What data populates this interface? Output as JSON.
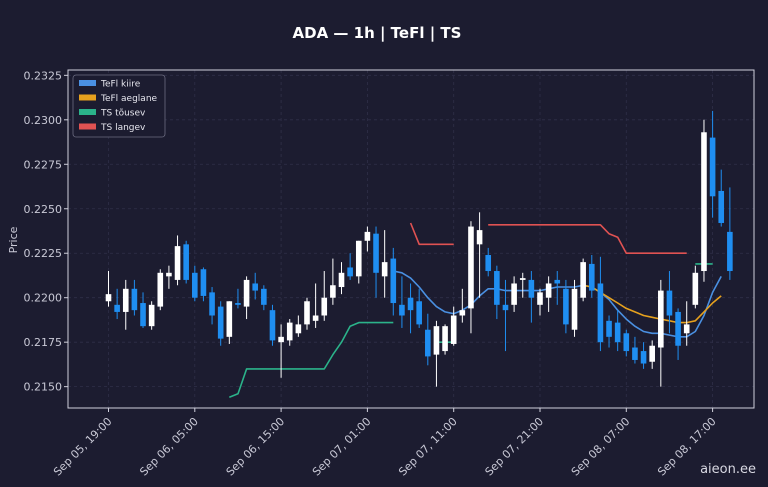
{
  "chart_data": {
    "type": "candlestick",
    "title": "ADA — 1h  |  TeFl  |  TS",
    "ylabel": "Price",
    "watermark": "aieon.ee",
    "ylim": [
      0.2138,
      0.2328
    ],
    "y_ticks": [
      0.215,
      0.2175,
      0.22,
      0.2225,
      0.225,
      0.2275,
      0.23,
      0.2325
    ],
    "y_tick_labels": [
      "0.2150",
      "0.2175",
      "0.2200",
      "0.2225",
      "0.2250",
      "0.2275",
      "0.2300",
      "0.2325"
    ],
    "x_tick_labels": [
      "Sep 05, 19:00",
      "Sep 06, 05:00",
      "Sep 06, 15:00",
      "Sep 07, 01:00",
      "Sep 07, 11:00",
      "Sep 07, 21:00",
      "Sep 08, 07:00",
      "Sep 08, 17:00"
    ],
    "x_tick_index": [
      0,
      10,
      20,
      30,
      40,
      50,
      60,
      70
    ],
    "grid": true,
    "legend_position": "top-left",
    "legend": [
      {
        "label": "TeFl kiire",
        "color": "#4a90e2"
      },
      {
        "label": "TeFl aeglane",
        "color": "#e6a11e"
      },
      {
        "label": "TS tõusev",
        "color": "#2bb38a"
      },
      {
        "label": "TS langev",
        "color": "#e05252"
      }
    ],
    "colors": {
      "up": "#ffffff",
      "down": "#1f8ef1",
      "background": "#1c1c30"
    },
    "candles": [
      [
        0.2198,
        0.2215,
        0.2195,
        0.2202
      ],
      [
        0.2196,
        0.2205,
        0.2188,
        0.2192
      ],
      [
        0.2192,
        0.221,
        0.2182,
        0.2205
      ],
      [
        0.2205,
        0.221,
        0.219,
        0.2193
      ],
      [
        0.2197,
        0.2203,
        0.2183,
        0.2184
      ],
      [
        0.2184,
        0.2198,
        0.2182,
        0.2196
      ],
      [
        0.2195,
        0.2216,
        0.2193,
        0.2214
      ],
      [
        0.2212,
        0.2218,
        0.2205,
        0.2214
      ],
      [
        0.221,
        0.2235,
        0.2207,
        0.2229
      ],
      [
        0.223,
        0.2232,
        0.2208,
        0.221
      ],
      [
        0.2214,
        0.2218,
        0.2198,
        0.22
      ],
      [
        0.2216,
        0.2217,
        0.2198,
        0.2201
      ],
      [
        0.2203,
        0.2206,
        0.2185,
        0.219
      ],
      [
        0.2195,
        0.2198,
        0.2173,
        0.2177
      ],
      [
        0.2178,
        0.2198,
        0.2174,
        0.2198
      ],
      [
        0.2197,
        0.2205,
        0.2194,
        0.2196
      ],
      [
        0.2195,
        0.2212,
        0.2188,
        0.221
      ],
      [
        0.2208,
        0.2214,
        0.2199,
        0.2204
      ],
      [
        0.2205,
        0.2207,
        0.2193,
        0.2196
      ],
      [
        0.2193,
        0.2196,
        0.2173,
        0.2176
      ],
      [
        0.2175,
        0.2185,
        0.2155,
        0.2178
      ],
      [
        0.2176,
        0.2188,
        0.2173,
        0.2186
      ],
      [
        0.218,
        0.219,
        0.2178,
        0.2185
      ],
      [
        0.2185,
        0.22,
        0.2182,
        0.2198
      ],
      [
        0.2187,
        0.2208,
        0.2183,
        0.219
      ],
      [
        0.219,
        0.2215,
        0.2187,
        0.22
      ],
      [
        0.22,
        0.2222,
        0.2196,
        0.2207
      ],
      [
        0.2206,
        0.222,
        0.2202,
        0.2214
      ],
      [
        0.2217,
        0.2225,
        0.221,
        0.2212
      ],
      [
        0.2212,
        0.2232,
        0.2208,
        0.2232
      ],
      [
        0.2232,
        0.224,
        0.2226,
        0.2237
      ],
      [
        0.2236,
        0.224,
        0.22,
        0.2214
      ],
      [
        0.2212,
        0.2238,
        0.22,
        0.222
      ],
      [
        0.2222,
        0.2228,
        0.219,
        0.2197
      ],
      [
        0.2196,
        0.2212,
        0.2183,
        0.219
      ],
      [
        0.22,
        0.2208,
        0.218,
        0.2193
      ],
      [
        0.2198,
        0.2205,
        0.2183,
        0.2185
      ],
      [
        0.2182,
        0.2191,
        0.2162,
        0.2167
      ],
      [
        0.2168,
        0.2187,
        0.215,
        0.2184
      ],
      [
        0.217,
        0.2185,
        0.2168,
        0.2184
      ],
      [
        0.2174,
        0.2195,
        0.2173,
        0.219
      ],
      [
        0.219,
        0.2205,
        0.2186,
        0.2193
      ],
      [
        0.2194,
        0.2243,
        0.218,
        0.224
      ],
      [
        0.223,
        0.2248,
        0.22,
        0.2238
      ],
      [
        0.2224,
        0.2228,
        0.2212,
        0.2215
      ],
      [
        0.2215,
        0.2218,
        0.2188,
        0.2196
      ],
      [
        0.2196,
        0.221,
        0.217,
        0.2193
      ],
      [
        0.2196,
        0.2212,
        0.2192,
        0.2208
      ],
      [
        0.221,
        0.2214,
        0.22,
        0.2211
      ],
      [
        0.221,
        0.2215,
        0.2186,
        0.22
      ],
      [
        0.2196,
        0.2205,
        0.219,
        0.2203
      ],
      [
        0.22,
        0.2212,
        0.2192,
        0.2208
      ],
      [
        0.221,
        0.2215,
        0.2196,
        0.2208
      ],
      [
        0.2205,
        0.221,
        0.218,
        0.2185
      ],
      [
        0.2182,
        0.221,
        0.2178,
        0.2205
      ],
      [
        0.22,
        0.2222,
        0.2198,
        0.222
      ],
      [
        0.2219,
        0.2224,
        0.22,
        0.2204
      ],
      [
        0.2208,
        0.2223,
        0.217,
        0.2175
      ],
      [
        0.2187,
        0.219,
        0.2172,
        0.2178
      ],
      [
        0.2186,
        0.2193,
        0.217,
        0.2175
      ],
      [
        0.218,
        0.2182,
        0.2167,
        0.217
      ],
      [
        0.2172,
        0.2178,
        0.2163,
        0.2165
      ],
      [
        0.217,
        0.2175,
        0.216,
        0.2163
      ],
      [
        0.2164,
        0.2176,
        0.216,
        0.2173
      ],
      [
        0.2172,
        0.221,
        0.215,
        0.2204
      ],
      [
        0.2204,
        0.2215,
        0.218,
        0.219
      ],
      [
        0.2192,
        0.2194,
        0.2165,
        0.2173
      ],
      [
        0.218,
        0.2198,
        0.2173,
        0.2185
      ],
      [
        0.2196,
        0.2218,
        0.2194,
        0.2214
      ],
      [
        0.2215,
        0.23,
        0.2209,
        0.2293
      ],
      [
        0.229,
        0.2305,
        0.2245,
        0.2257
      ],
      [
        0.226,
        0.2272,
        0.224,
        0.2242
      ],
      [
        0.2237,
        0.2262,
        0.221,
        0.2215
      ]
    ],
    "tefl_kiire": [
      [
        33,
        0.2215
      ],
      [
        34,
        0.2214
      ],
      [
        35,
        0.2211
      ],
      [
        36,
        0.2206
      ],
      [
        37,
        0.22
      ],
      [
        38,
        0.2195
      ],
      [
        39,
        0.2192
      ],
      [
        40,
        0.2191
      ],
      [
        41,
        0.2193
      ],
      [
        42,
        0.2196
      ],
      [
        43,
        0.2201
      ],
      [
        44,
        0.2205
      ],
      [
        45,
        0.2205
      ],
      [
        46,
        0.2204
      ],
      [
        47,
        0.2204
      ],
      [
        48,
        0.2204
      ],
      [
        49,
        0.2204
      ],
      [
        50,
        0.2204
      ],
      [
        51,
        0.2205
      ],
      [
        52,
        0.2206
      ],
      [
        53,
        0.2206
      ],
      [
        54,
        0.2206
      ],
      [
        55,
        0.2207
      ],
      [
        56,
        0.2206
      ],
      [
        57,
        0.2203
      ],
      [
        58,
        0.2199
      ],
      [
        59,
        0.2193
      ],
      [
        60,
        0.2188
      ],
      [
        61,
        0.2184
      ],
      [
        62,
        0.2181
      ],
      [
        63,
        0.218
      ],
      [
        64,
        0.218
      ],
      [
        65,
        0.2179
      ],
      [
        66,
        0.2178
      ],
      [
        67,
        0.2178
      ],
      [
        68,
        0.2181
      ],
      [
        69,
        0.219
      ],
      [
        70,
        0.2203
      ],
      [
        71,
        0.2212
      ]
    ],
    "tefl_aeglane": [
      [
        55,
        0.2207
      ],
      [
        56,
        0.2206
      ],
      [
        57,
        0.2203
      ],
      [
        58,
        0.22
      ],
      [
        59,
        0.2197
      ],
      [
        60,
        0.2194
      ],
      [
        61,
        0.2192
      ],
      [
        62,
        0.219
      ],
      [
        63,
        0.2189
      ],
      [
        64,
        0.2188
      ],
      [
        65,
        0.2187
      ],
      [
        66,
        0.2186
      ],
      [
        67,
        0.2186
      ],
      [
        68,
        0.2187
      ],
      [
        69,
        0.2192
      ],
      [
        70,
        0.2197
      ],
      [
        71,
        0.2201
      ]
    ],
    "ts_tousev": [
      [
        [
          14,
          0.2144
        ],
        [
          15,
          0.2146
        ],
        [
          16,
          0.216
        ],
        [
          17,
          0.216
        ],
        [
          18,
          0.216
        ],
        [
          19,
          0.216
        ],
        [
          20,
          0.216
        ],
        [
          21,
          0.216
        ],
        [
          22,
          0.216
        ],
        [
          23,
          0.216
        ],
        [
          24,
          0.216
        ],
        [
          25,
          0.216
        ],
        [
          26,
          0.2168
        ],
        [
          27,
          0.2175
        ],
        [
          28,
          0.2184
        ],
        [
          29,
          0.2186
        ],
        [
          30,
          0.2186
        ],
        [
          31,
          0.2186
        ],
        [
          32,
          0.2186
        ],
        [
          33,
          0.2186
        ]
      ],
      [
        [
          38,
          0.2175
        ],
        [
          39,
          0.2175
        ],
        [
          40,
          0.2175
        ]
      ],
      [
        [
          68,
          0.2219
        ],
        [
          69,
          0.2219
        ],
        [
          70,
          0.2219
        ]
      ]
    ],
    "ts_langev": [
      [
        [
          35,
          0.2242
        ],
        [
          36,
          0.223
        ],
        [
          37,
          0.223
        ],
        [
          38,
          0.223
        ],
        [
          39,
          0.223
        ],
        [
          40,
          0.223
        ]
      ],
      [
        [
          44,
          0.2241
        ],
        [
          45,
          0.2241
        ],
        [
          46,
          0.2241
        ],
        [
          47,
          0.2241
        ],
        [
          48,
          0.2241
        ],
        [
          49,
          0.2241
        ],
        [
          50,
          0.2241
        ],
        [
          51,
          0.2241
        ],
        [
          52,
          0.2241
        ],
        [
          53,
          0.2241
        ],
        [
          54,
          0.2241
        ],
        [
          55,
          0.2241
        ],
        [
          56,
          0.2241
        ],
        [
          57,
          0.2241
        ],
        [
          58,
          0.2236
        ],
        [
          59,
          0.2234
        ],
        [
          60,
          0.2225
        ],
        [
          61,
          0.2225
        ],
        [
          62,
          0.2225
        ],
        [
          63,
          0.2225
        ],
        [
          64,
          0.2225
        ],
        [
          65,
          0.2225
        ],
        [
          66,
          0.2225
        ],
        [
          67,
          0.2225
        ]
      ]
    ]
  }
}
